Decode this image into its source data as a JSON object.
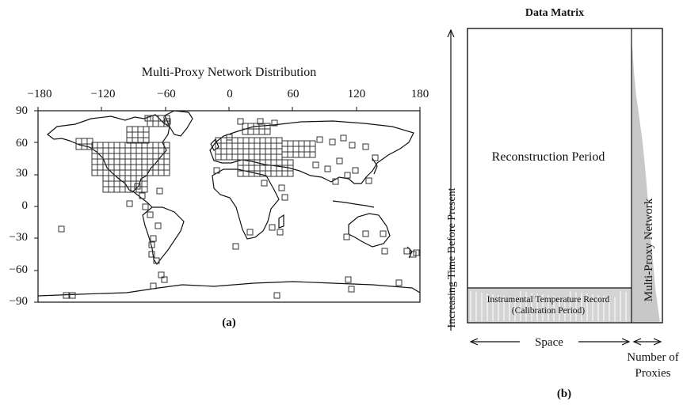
{
  "panel_a": {
    "title": "Multi-Proxy Network Distribution",
    "label": "(a)",
    "x_ticks": [
      "−180",
      "−120",
      "−60",
      "0",
      "60",
      "120",
      "180"
    ],
    "y_ticks": [
      "90",
      "60",
      "30",
      "0",
      "−30",
      "−60",
      "−90"
    ]
  },
  "panel_b": {
    "title": "Data Matrix",
    "label": "(b)",
    "y_axis_label": "Increasing Time Before Present",
    "reconstruction_label": "Reconstruction Period",
    "instrumental_label_line1": "Instrumental Temperature Record",
    "instrumental_label_line2": "(Calibration Period)",
    "network_label": "Multi-Proxy Network",
    "space_label": "Space",
    "number_label_line1": "Number of",
    "number_label_line2": "Proxies"
  },
  "colors": {
    "grid": "#333333",
    "fill": "#c8c8c8",
    "text": "#111111"
  }
}
